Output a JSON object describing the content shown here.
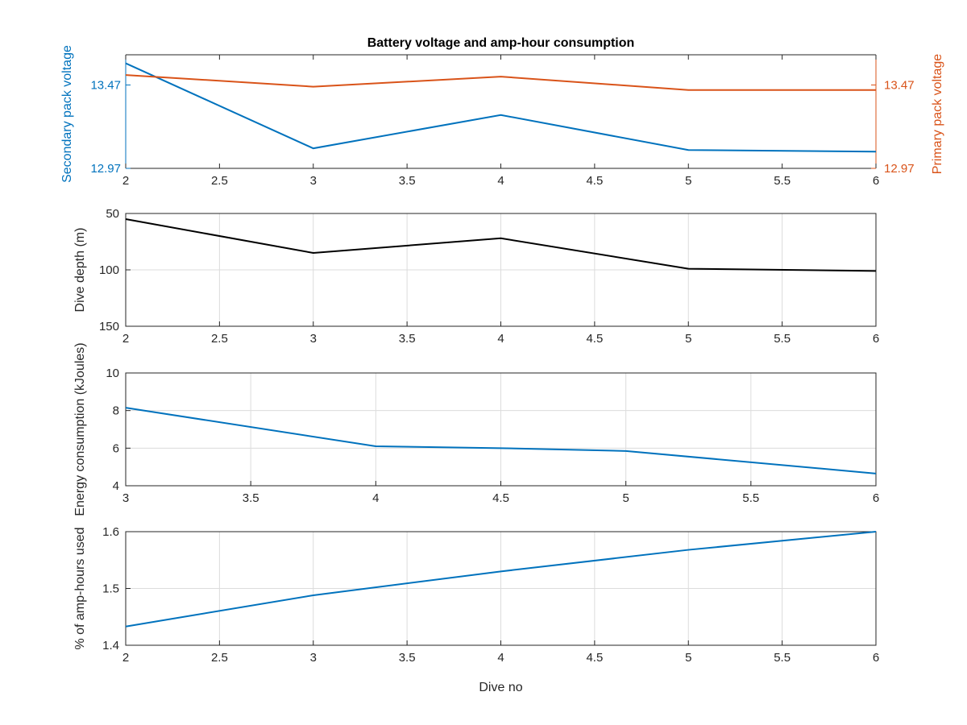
{
  "chart_data": [
    {
      "type": "line",
      "title": "Battery voltage and amp-hour consumption",
      "xlim": [
        2,
        6
      ],
      "xticks": [
        "2",
        "2.5",
        "3",
        "3.5",
        "4",
        "4.5",
        "5",
        "5.5",
        "6"
      ],
      "grid": false,
      "left_axis": {
        "ylabel": "Secondary pack voltage",
        "ylim": [
          12.97,
          13.6511
        ],
        "yticks": [
          "12.97",
          "13.47"
        ],
        "color": "#0072BD"
      },
      "right_axis": {
        "ylabel": "Primary pack voltage",
        "ylim": [
          12.97,
          13.6511
        ],
        "yticks": [
          "12.97",
          "13.47"
        ],
        "color": "#D95319"
      },
      "series": [
        {
          "axis": "left",
          "color": "#0072BD",
          "x": [
            2,
            3,
            4,
            5,
            6
          ],
          "values": [
            13.6,
            13.09,
            13.29,
            13.08,
            13.07
          ]
        },
        {
          "axis": "right",
          "color": "#D95319",
          "x": [
            2,
            3,
            4,
            5,
            6
          ],
          "values": [
            13.53,
            13.46,
            13.52,
            13.44,
            13.44
          ]
        }
      ]
    },
    {
      "type": "line",
      "xlim": [
        2,
        6
      ],
      "xticks": [
        "2",
        "2.5",
        "3",
        "3.5",
        "4",
        "4.5",
        "5",
        "5.5",
        "6"
      ],
      "ylabel": "Dive depth (m)",
      "ylim": [
        50,
        150
      ],
      "yreverse": true,
      "yticks": [
        "50",
        "100",
        "150"
      ],
      "grid": true,
      "series": [
        {
          "color": "#000000",
          "x": [
            2,
            3,
            4,
            5,
            6
          ],
          "values": [
            55,
            85,
            72,
            99,
            101
          ]
        }
      ]
    },
    {
      "type": "line",
      "xlim": [
        3,
        6
      ],
      "xticks": [
        "3",
        "3.5",
        "4",
        "4.5",
        "5",
        "5.5",
        "6"
      ],
      "ylabel": "Energy consumption (kJoules)",
      "ylim": [
        4,
        10
      ],
      "yticks": [
        "4",
        "6",
        "8",
        "10"
      ],
      "grid": true,
      "series": [
        {
          "color": "#0072BD",
          "x": [
            3,
            4,
            4.5,
            5,
            6
          ],
          "values": [
            8.15,
            6.1,
            6.0,
            5.85,
            4.65
          ]
        }
      ]
    },
    {
      "type": "line",
      "xlim": [
        2,
        6
      ],
      "xticks": [
        "2",
        "2.5",
        "3",
        "3.5",
        "4",
        "4.5",
        "5",
        "5.5",
        "6"
      ],
      "xlabel": "Dive no",
      "ylabel": "% of amp-hours used",
      "ylim": [
        1.4,
        1.6
      ],
      "yticks": [
        "1.4",
        "1.5",
        "1.6"
      ],
      "grid": true,
      "series": [
        {
          "color": "#0072BD",
          "x": [
            2,
            3,
            4,
            5,
            6
          ],
          "values": [
            1.433,
            1.488,
            1.53,
            1.568,
            1.6
          ]
        }
      ]
    }
  ]
}
